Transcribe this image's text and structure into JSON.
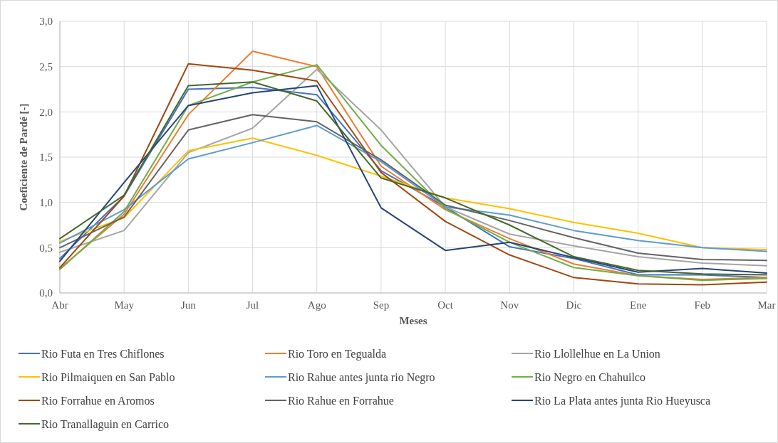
{
  "chart_data": {
    "type": "line",
    "xlabel": "Meses",
    "ylabel": "Coeficiente de Pardé [-]",
    "categories": [
      "Abr",
      "May",
      "Jun",
      "Jul",
      "Ago",
      "Sep",
      "Oct",
      "Nov",
      "Dic",
      "Ene",
      "Feb",
      "Mar"
    ],
    "ylim": [
      0,
      3
    ],
    "yticks": [
      {
        "value": 0,
        "label": "0,0"
      },
      {
        "value": 0.5,
        "label": "0,5"
      },
      {
        "value": 1,
        "label": "1,0"
      },
      {
        "value": 1.5,
        "label": "1,5"
      },
      {
        "value": 2,
        "label": "2,0"
      },
      {
        "value": 2.5,
        "label": "2,5"
      },
      {
        "value": 3,
        "label": "3,0"
      }
    ],
    "grid": true,
    "legend": "bottom",
    "marker": "none",
    "line_style": "solid",
    "series": [
      {
        "name": "Rio Futa en Tres Chiflones",
        "color": "#4472c4",
        "values": [
          0.38,
          1.07,
          2.25,
          2.27,
          2.19,
          1.35,
          0.95,
          0.51,
          0.38,
          0.2,
          0.2,
          0.17
        ]
      },
      {
        "name": "Rio Toro en Tegualda",
        "color": "#ed7d31",
        "values": [
          0.27,
          0.87,
          1.97,
          2.67,
          2.5,
          1.4,
          0.92,
          0.6,
          0.32,
          0.19,
          0.15,
          0.17
        ]
      },
      {
        "name": "Rio Llollelhue en La Union",
        "color": "#a5a5a5",
        "values": [
          0.45,
          0.69,
          1.55,
          1.82,
          2.47,
          1.8,
          0.95,
          0.65,
          0.52,
          0.4,
          0.33,
          0.3
        ]
      },
      {
        "name": "Rio Pilmaiquen en San Pablo",
        "color": "#ffc000",
        "values": [
          0.57,
          0.83,
          1.57,
          1.71,
          1.52,
          1.29,
          1.05,
          0.93,
          0.78,
          0.66,
          0.5,
          0.48
        ]
      },
      {
        "name": "Rio Rahue antes junta rio Negro",
        "color": "#5b9bd5",
        "values": [
          0.55,
          0.92,
          1.48,
          1.66,
          1.85,
          1.45,
          0.95,
          0.86,
          0.69,
          0.58,
          0.5,
          0.46
        ]
      },
      {
        "name": "Rio Negro en Chahuilco",
        "color": "#70ad47",
        "values": [
          0.26,
          0.9,
          2.07,
          2.33,
          2.52,
          1.63,
          0.93,
          0.56,
          0.28,
          0.19,
          0.14,
          0.16
        ]
      },
      {
        "name": "Rio Forrahue en Aromos",
        "color": "#9e480e",
        "values": [
          0.28,
          1.07,
          2.53,
          2.46,
          2.34,
          1.33,
          0.79,
          0.42,
          0.17,
          0.1,
          0.09,
          0.12
        ]
      },
      {
        "name": "Rio Rahue en Forrahue",
        "color": "#636363",
        "values": [
          0.5,
          0.84,
          1.8,
          1.97,
          1.89,
          1.47,
          0.97,
          0.8,
          0.61,
          0.44,
          0.37,
          0.36
        ]
      },
      {
        "name": "Rio La Plata antes junta Rio Hueyusca",
        "color": "#264478",
        "values": [
          0.35,
          1.22,
          2.07,
          2.21,
          2.29,
          0.94,
          0.47,
          0.56,
          0.39,
          0.23,
          0.27,
          0.22
        ]
      },
      {
        "name": "Rio Tranallaguin en Carrico",
        "color": "#43682b",
        "values": [
          0.6,
          1.08,
          2.29,
          2.33,
          2.12,
          1.27,
          1.05,
          0.75,
          0.4,
          0.25,
          0.21,
          0.2
        ]
      }
    ]
  }
}
